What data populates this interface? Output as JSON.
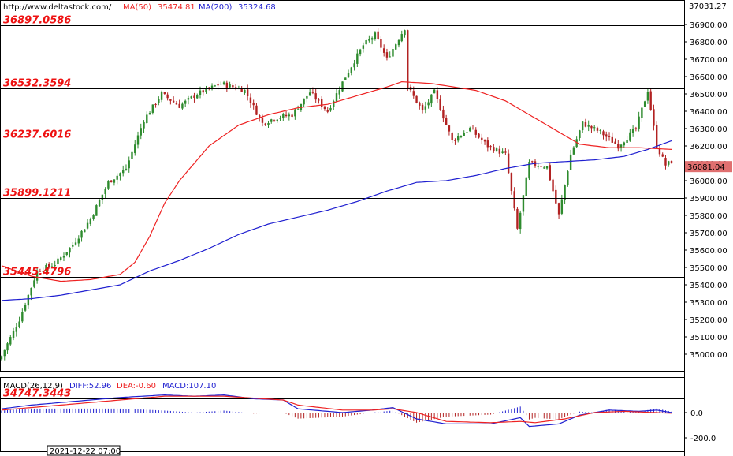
{
  "header": {
    "url": "http://www.deltastock.com/",
    "ma50_label": "MA(50)",
    "ma50_value": "35474.81",
    "ma200_label": "MA(200)",
    "ma200_value": "35324.68",
    "top_value": "37031.27"
  },
  "current_price": "36081.04",
  "macd_header": {
    "name": "MACD(26,12,9)",
    "diff": "DIFF:52.96",
    "dea": "DEA:-0.60",
    "macd": "MACD:107.10"
  },
  "date_label": "2021-12-22 07:00",
  "colors": {
    "bull": "#2e8b2e",
    "bear": "#b22222",
    "ma50": "#ee2222",
    "ma200": "#1f1fd0",
    "level_text": "#ee1111",
    "current_bg": "#e07070"
  },
  "chart_data": [
    {
      "type": "candlestick",
      "title": "",
      "ylim": [
        34900,
        37000
      ],
      "yticks": [
        "36900.00",
        "36800.00",
        "36700.00",
        "36600.00",
        "36500.00",
        "36400.00",
        "36300.00",
        "36200.00",
        "36100.00",
        "36000.00",
        "35900.00",
        "35800.00",
        "35700.00",
        "35600.00",
        "35500.00",
        "35400.00",
        "35300.00",
        "35200.00",
        "35100.00",
        "35000.00"
      ],
      "levels": [
        {
          "label": "36897.0586",
          "value": 36897.06
        },
        {
          "label": "36532.3594",
          "value": 36532.36
        },
        {
          "label": "36237.6016",
          "value": 36237.6
        },
        {
          "label": "35899.1211",
          "value": 35899.12
        },
        {
          "label": "35445.4796",
          "value": 35445.48
        },
        {
          "label": "34747.3443",
          "value": 34747.34
        }
      ],
      "close_anchors": [
        [
          0,
          34990
        ],
        [
          6,
          35200
        ],
        [
          12,
          35480
        ],
        [
          18,
          35520
        ],
        [
          24,
          35630
        ],
        [
          30,
          35780
        ],
        [
          36,
          35990
        ],
        [
          42,
          36070
        ],
        [
          48,
          36350
        ],
        [
          54,
          36500
        ],
        [
          60,
          36430
        ],
        [
          66,
          36500
        ],
        [
          74,
          36560
        ],
        [
          82,
          36520
        ],
        [
          88,
          36330
        ],
        [
          92,
          36360
        ],
        [
          98,
          36380
        ],
        [
          104,
          36510
        ],
        [
          110,
          36400
        ],
        [
          116,
          36600
        ],
        [
          122,
          36780
        ],
        [
          126,
          36840
        ],
        [
          130,
          36700
        ],
        [
          136,
          36880
        ],
        [
          137,
          36540
        ],
        [
          142,
          36400
        ],
        [
          146,
          36510
        ],
        [
          152,
          36230
        ],
        [
          158,
          36300
        ],
        [
          164,
          36200
        ],
        [
          170,
          36150
        ],
        [
          174,
          35720
        ],
        [
          178,
          36100
        ],
        [
          184,
          36080
        ],
        [
          188,
          35800
        ],
        [
          192,
          36150
        ],
        [
          196,
          36330
        ],
        [
          202,
          36280
        ],
        [
          208,
          36200
        ],
        [
          214,
          36300
        ],
        [
          218,
          36520
        ],
        [
          221,
          36200
        ],
        [
          224,
          36090
        ],
        [
          226,
          36110
        ]
      ],
      "ma50_anchors": [
        [
          0,
          35510
        ],
        [
          10,
          35450
        ],
        [
          20,
          35420
        ],
        [
          30,
          35430
        ],
        [
          40,
          35460
        ],
        [
          45,
          35530
        ],
        [
          50,
          35680
        ],
        [
          55,
          35870
        ],
        [
          60,
          36000
        ],
        [
          70,
          36200
        ],
        [
          80,
          36320
        ],
        [
          90,
          36380
        ],
        [
          100,
          36420
        ],
        [
          110,
          36440
        ],
        [
          120,
          36490
        ],
        [
          130,
          36540
        ],
        [
          135,
          36570
        ],
        [
          145,
          36560
        ],
        [
          160,
          36520
        ],
        [
          170,
          36460
        ],
        [
          180,
          36360
        ],
        [
          188,
          36280
        ],
        [
          195,
          36210
        ],
        [
          205,
          36190
        ],
        [
          215,
          36190
        ],
        [
          226,
          36180
        ]
      ],
      "ma200_anchors": [
        [
          0,
          35310
        ],
        [
          10,
          35320
        ],
        [
          20,
          35340
        ],
        [
          30,
          35370
        ],
        [
          40,
          35400
        ],
        [
          50,
          35480
        ],
        [
          60,
          35540
        ],
        [
          70,
          35610
        ],
        [
          80,
          35690
        ],
        [
          90,
          35750
        ],
        [
          100,
          35790
        ],
        [
          110,
          35830
        ],
        [
          120,
          35880
        ],
        [
          130,
          35940
        ],
        [
          140,
          35990
        ],
        [
          150,
          36000
        ],
        [
          160,
          36030
        ],
        [
          170,
          36070
        ],
        [
          180,
          36100
        ],
        [
          190,
          36110
        ],
        [
          200,
          36120
        ],
        [
          210,
          36140
        ],
        [
          218,
          36180
        ],
        [
          226,
          36230
        ]
      ]
    },
    {
      "type": "macd",
      "title": "MACD(26,12,9)",
      "ylim": [
        -200,
        200
      ],
      "yticks": [
        "0.0",
        "-200.0"
      ],
      "diff_anchors": [
        [
          0,
          30
        ],
        [
          10,
          60
        ],
        [
          20,
          80
        ],
        [
          30,
          100
        ],
        [
          40,
          120
        ],
        [
          55,
          140
        ],
        [
          65,
          130
        ],
        [
          75,
          140
        ],
        [
          85,
          110
        ],
        [
          95,
          100
        ],
        [
          100,
          30
        ],
        [
          115,
          0
        ],
        [
          125,
          20
        ],
        [
          132,
          40
        ],
        [
          140,
          -50
        ],
        [
          150,
          -90
        ],
        [
          165,
          -90
        ],
        [
          175,
          -40
        ],
        [
          178,
          -110
        ],
        [
          188,
          -90
        ],
        [
          195,
          -20
        ],
        [
          205,
          20
        ],
        [
          215,
          10
        ],
        [
          221,
          20
        ],
        [
          226,
          0
        ]
      ],
      "dea_anchors": [
        [
          0,
          20
        ],
        [
          10,
          40
        ],
        [
          20,
          60
        ],
        [
          30,
          80
        ],
        [
          40,
          100
        ],
        [
          55,
          130
        ],
        [
          65,
          130
        ],
        [
          75,
          130
        ],
        [
          85,
          115
        ],
        [
          95,
          100
        ],
        [
          100,
          60
        ],
        [
          115,
          20
        ],
        [
          125,
          20
        ],
        [
          132,
          30
        ],
        [
          140,
          0
        ],
        [
          150,
          -70
        ],
        [
          165,
          -80
        ],
        [
          175,
          -70
        ],
        [
          180,
          -80
        ],
        [
          190,
          -50
        ],
        [
          200,
          0
        ],
        [
          210,
          10
        ],
        [
          226,
          -5
        ]
      ]
    }
  ]
}
